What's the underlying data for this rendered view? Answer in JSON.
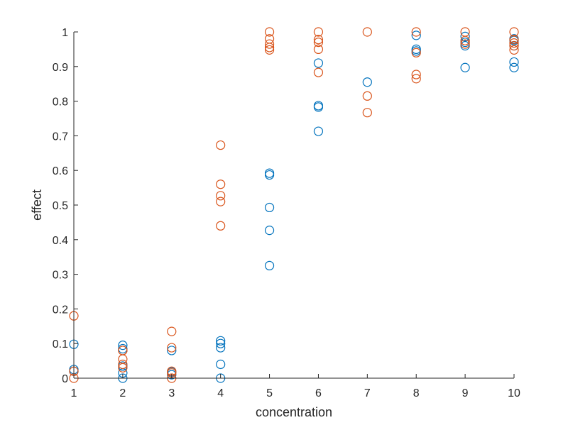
{
  "chart_data": {
    "type": "scatter",
    "xlabel": "concentration",
    "ylabel": "effect",
    "xlim": [
      1,
      10
    ],
    "ylim": [
      0,
      1
    ],
    "xticks": [
      "1",
      "2",
      "3",
      "4",
      "5",
      "6",
      "7",
      "8",
      "9",
      "10"
    ],
    "yticks": [
      "0",
      "0.1",
      "0.2",
      "0.3",
      "0.4",
      "0.5",
      "0.6",
      "0.7",
      "0.8",
      "0.9",
      "1"
    ],
    "grid": false,
    "legend": false,
    "marker": "open-circle",
    "series": [
      {
        "color": "#0072BD",
        "points": [
          [
            1,
            0.02
          ],
          [
            1,
            0.025
          ],
          [
            1,
            0.098
          ],
          [
            2,
            0.0
          ],
          [
            2,
            0.015
          ],
          [
            2,
            0.035
          ],
          [
            2,
            0.085
          ],
          [
            2,
            0.095
          ],
          [
            3,
            0.01
          ],
          [
            3,
            0.018
          ],
          [
            3,
            0.08
          ],
          [
            4,
            0.0
          ],
          [
            4,
            0.04
          ],
          [
            4,
            0.088
          ],
          [
            4,
            0.1
          ],
          [
            4,
            0.108
          ],
          [
            5,
            0.325
          ],
          [
            5,
            0.427
          ],
          [
            5,
            0.493
          ],
          [
            5,
            0.587
          ],
          [
            5,
            0.592
          ],
          [
            6,
            0.713
          ],
          [
            6,
            0.783
          ],
          [
            6,
            0.787
          ],
          [
            6,
            0.91
          ],
          [
            7,
            0.855
          ],
          [
            8,
            0.945
          ],
          [
            8,
            0.95
          ],
          [
            8,
            0.99
          ],
          [
            9,
            0.897
          ],
          [
            9,
            0.96
          ],
          [
            9,
            0.97
          ],
          [
            9,
            0.987
          ],
          [
            10,
            0.897
          ],
          [
            10,
            0.913
          ],
          [
            10,
            0.96
          ],
          [
            10,
            0.975
          ],
          [
            10,
            0.98
          ]
        ]
      },
      {
        "color": "#D95319",
        "points": [
          [
            1,
            0.0
          ],
          [
            1,
            0.02
          ],
          [
            1,
            0.18
          ],
          [
            2,
            0.03
          ],
          [
            2,
            0.04
          ],
          [
            2,
            0.055
          ],
          [
            2,
            0.08
          ],
          [
            2,
            0.08
          ],
          [
            3,
            0.0
          ],
          [
            3,
            0.015
          ],
          [
            3,
            0.02
          ],
          [
            3,
            0.088
          ],
          [
            3,
            0.135
          ],
          [
            4,
            0.44
          ],
          [
            4,
            0.51
          ],
          [
            4,
            0.527
          ],
          [
            4,
            0.56
          ],
          [
            4,
            0.673
          ],
          [
            5,
            0.948
          ],
          [
            5,
            0.955
          ],
          [
            5,
            0.965
          ],
          [
            5,
            0.98
          ],
          [
            5,
            1.0
          ],
          [
            6,
            0.883
          ],
          [
            6,
            0.95
          ],
          [
            6,
            0.97
          ],
          [
            6,
            0.978
          ],
          [
            6,
            1.0
          ],
          [
            7,
            0.767
          ],
          [
            7,
            0.815
          ],
          [
            7,
            1.0
          ],
          [
            8,
            0.865
          ],
          [
            8,
            0.877
          ],
          [
            8,
            0.94
          ],
          [
            8,
            1.0
          ],
          [
            9,
            0.965
          ],
          [
            9,
            0.975
          ],
          [
            9,
            1.0
          ],
          [
            10,
            0.948
          ],
          [
            10,
            0.96
          ],
          [
            10,
            0.968
          ],
          [
            10,
            0.978
          ],
          [
            10,
            1.0
          ]
        ]
      }
    ]
  }
}
